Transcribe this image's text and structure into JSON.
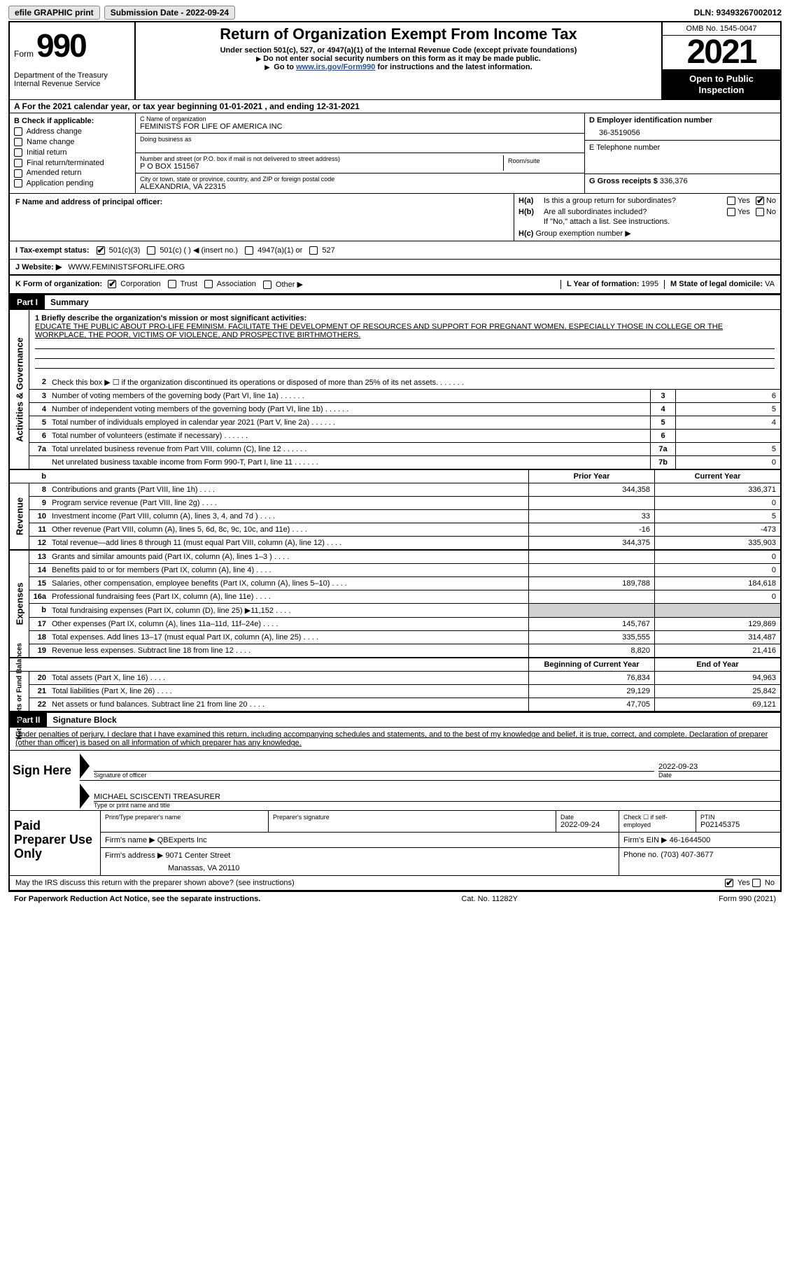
{
  "topbar": {
    "efile": "efile GRAPHIC print",
    "submission": "Submission Date - 2022-09-24",
    "dln": "DLN: 93493267002012"
  },
  "header": {
    "form_word": "Form",
    "form_no": "990",
    "dept": "Department of the Treasury\nInternal Revenue Service",
    "title": "Return of Organization Exempt From Income Tax",
    "sub1": "Under section 501(c), 527, or 4947(a)(1) of the Internal Revenue Code (except private foundations)",
    "sub2": "Do not enter social security numbers on this form as it may be made public.",
    "sub3_a": "Go to ",
    "sub3_link": "www.irs.gov/Form990",
    "sub3_b": " for instructions and the latest information.",
    "omb": "OMB No. 1545-0047",
    "year": "2021",
    "inspect": "Open to Public Inspection"
  },
  "calyr": {
    "a": "A For the 2021 calendar year, or tax year beginning ",
    "begin": "01-01-2021",
    "mid": "   , and ending ",
    "end": "12-31-2021"
  },
  "boxB": {
    "hdr": "B Check if applicable:",
    "items": [
      "Address change",
      "Name change",
      "Initial return",
      "Final return/terminated",
      "Amended return",
      "Application pending"
    ]
  },
  "boxC": {
    "name_lbl": "C Name of organization",
    "name": "FEMINISTS FOR LIFE OF AMERICA INC",
    "dba_lbl": "Doing business as",
    "addr_lbl": "Number and street (or P.O. box if mail is not delivered to street address)",
    "room_lbl": "Room/suite",
    "addr": "P O BOX 151567",
    "city_lbl": "City or town, state or province, country, and ZIP or foreign postal code",
    "city": "ALEXANDRIA, VA  22315"
  },
  "boxD": {
    "lbl": "D Employer identification number",
    "val": "36-3519056"
  },
  "boxE": {
    "lbl": "E Telephone number",
    "val": ""
  },
  "boxG": {
    "lbl": "G Gross receipts $",
    "val": "336,376"
  },
  "boxF": {
    "lbl": "F Name and address of principal officer:"
  },
  "boxH": {
    "a_lbl": "H(a)  Is this a group return for subordinates?",
    "b_lbl": "H(b)  Are all subordinates included?",
    "no_note": "If \"No,\" attach a list. See instructions.",
    "c_lbl": "H(c)  Group exemption number ▶",
    "yes": "Yes",
    "no": "No"
  },
  "taxexempt": {
    "lbl": "I   Tax-exempt status:",
    "opt1": "501(c)(3)",
    "opt2": "501(c) (   ) ◀ (insert no.)",
    "opt3": "4947(a)(1) or",
    "opt4": "527"
  },
  "website": {
    "lbl": "J   Website: ▶",
    "val": "WWW.FEMINISTSFORLIFE.ORG"
  },
  "korg": {
    "lbl": "K Form of organization:",
    "opts": [
      "Corporation",
      "Trust",
      "Association",
      "Other ▶"
    ],
    "L_lbl": "L Year of formation:",
    "L_val": "1995",
    "M_lbl": "M State of legal domicile:",
    "M_val": "VA"
  },
  "part1_hdr": "Part I",
  "part1_title": "Summary",
  "mission_lbl": "1   Briefly describe the organization's mission or most significant activities:",
  "mission_txt": "EDUCATE THE PUBLIC ABOUT PRO-LIFE FEMINISM. FACILITATE THE DEVELOPMENT OF RESOURCES AND SUPPORT FOR PREGNANT WOMEN, ESPECIALLY THOSE IN COLLEGE OR THE WORKPLACE, THE POOR, VICTIMS OF VIOLENCE, AND PROSPECTIVE BIRTHMOTHERS.",
  "vtab_act": "Activities & Governance",
  "vtab_rev": "Revenue",
  "vtab_exp": "Expenses",
  "vtab_net": "Net Assets or Fund Balances",
  "lines_gov": [
    {
      "n": "2",
      "t": "Check this box ▶ ☐  if the organization discontinued its operations or disposed of more than 25% of its net assets.",
      "box": "",
      "v": ""
    },
    {
      "n": "3",
      "t": "Number of voting members of the governing body (Part VI, line 1a)",
      "box": "3",
      "v": "6"
    },
    {
      "n": "4",
      "t": "Number of independent voting members of the governing body (Part VI, line 1b)",
      "box": "4",
      "v": "5"
    },
    {
      "n": "5",
      "t": "Total number of individuals employed in calendar year 2021 (Part V, line 2a)",
      "box": "5",
      "v": "4"
    },
    {
      "n": "6",
      "t": "Total number of volunteers (estimate if necessary)",
      "box": "6",
      "v": ""
    },
    {
      "n": "7a",
      "t": "Total unrelated business revenue from Part VIII, column (C), line 12",
      "box": "7a",
      "v": "5"
    },
    {
      "n": "",
      "t": "Net unrelated business taxable income from Form 990-T, Part I, line 11",
      "box": "7b",
      "v": "0"
    }
  ],
  "col_hdrs": {
    "b": "b",
    "prior": "Prior Year",
    "current": "Current Year"
  },
  "lines_rev": [
    {
      "n": "8",
      "t": "Contributions and grants (Part VIII, line 1h)",
      "p": "344,358",
      "c": "336,371"
    },
    {
      "n": "9",
      "t": "Program service revenue (Part VIII, line 2g)",
      "p": "",
      "c": "0"
    },
    {
      "n": "10",
      "t": "Investment income (Part VIII, column (A), lines 3, 4, and 7d )",
      "p": "33",
      "c": "5"
    },
    {
      "n": "11",
      "t": "Other revenue (Part VIII, column (A), lines 5, 6d, 8c, 9c, 10c, and 11e)",
      "p": "-16",
      "c": "-473"
    },
    {
      "n": "12",
      "t": "Total revenue—add lines 8 through 11 (must equal Part VIII, column (A), line 12)",
      "p": "344,375",
      "c": "335,903"
    }
  ],
  "lines_exp": [
    {
      "n": "13",
      "t": "Grants and similar amounts paid (Part IX, column (A), lines 1–3 )",
      "p": "",
      "c": "0"
    },
    {
      "n": "14",
      "t": "Benefits paid to or for members (Part IX, column (A), line 4)",
      "p": "",
      "c": "0"
    },
    {
      "n": "15",
      "t": "Salaries, other compensation, employee benefits (Part IX, column (A), lines 5–10)",
      "p": "189,788",
      "c": "184,618"
    },
    {
      "n": "16a",
      "t": "Professional fundraising fees (Part IX, column (A), line 11e)",
      "p": "",
      "c": "0"
    },
    {
      "n": "b",
      "t": "Total fundraising expenses (Part IX, column (D), line 25) ▶11,152",
      "p": "shade",
      "c": "shade"
    },
    {
      "n": "17",
      "t": "Other expenses (Part IX, column (A), lines 11a–11d, 11f–24e)",
      "p": "145,767",
      "c": "129,869"
    },
    {
      "n": "18",
      "t": "Total expenses. Add lines 13–17 (must equal Part IX, column (A), line 25)",
      "p": "335,555",
      "c": "314,487"
    },
    {
      "n": "19",
      "t": "Revenue less expenses. Subtract line 18 from line 12",
      "p": "8,820",
      "c": "21,416"
    }
  ],
  "net_hdrs": {
    "beg": "Beginning of Current Year",
    "end": "End of Year"
  },
  "lines_net": [
    {
      "n": "20",
      "t": "Total assets (Part X, line 16)",
      "p": "76,834",
      "c": "94,963"
    },
    {
      "n": "21",
      "t": "Total liabilities (Part X, line 26)",
      "p": "29,129",
      "c": "25,842"
    },
    {
      "n": "22",
      "t": "Net assets or fund balances. Subtract line 21 from line 20",
      "p": "47,705",
      "c": "69,121"
    }
  ],
  "part2_hdr": "Part II",
  "part2_title": "Signature Block",
  "penalties": "Under penalties of perjury, I declare that I have examined this return, including accompanying schedules and statements, and to the best of my knowledge and belief, it is true, correct, and complete. Declaration of preparer (other than officer) is based on all information of which preparer has any knowledge.",
  "sign": {
    "here": "Sign Here",
    "sig_of_officer": "Signature of officer",
    "date_lbl": "Date",
    "date": "2022-09-23",
    "name": "MICHAEL SCISCENTI  TREASURER",
    "name_lbl": "Type or print name and title"
  },
  "paid": {
    "lbl": "Paid Preparer Use Only",
    "print_lbl": "Print/Type preparer's name",
    "sig_lbl": "Preparer's signature",
    "date_lbl": "Date",
    "date": "2022-09-24",
    "check_lbl": "Check ☐ if self-employed",
    "ptin_lbl": "PTIN",
    "ptin": "P02145375",
    "firm_name_lbl": "Firm's name   ▶",
    "firm_name": "QBExperts Inc",
    "firm_ein_lbl": "Firm's EIN ▶",
    "firm_ein": "46-1644500",
    "firm_addr_lbl": "Firm's address ▶",
    "firm_addr1": "9071 Center Street",
    "firm_addr2": "Manassas, VA  20110",
    "phone_lbl": "Phone no.",
    "phone": "(703) 407-3677"
  },
  "discuss": "May the IRS discuss this return with the preparer shown above? (see instructions)",
  "footer": {
    "left": "For Paperwork Reduction Act Notice, see the separate instructions.",
    "mid": "Cat. No. 11282Y",
    "right": "Form 990 (2021)"
  }
}
